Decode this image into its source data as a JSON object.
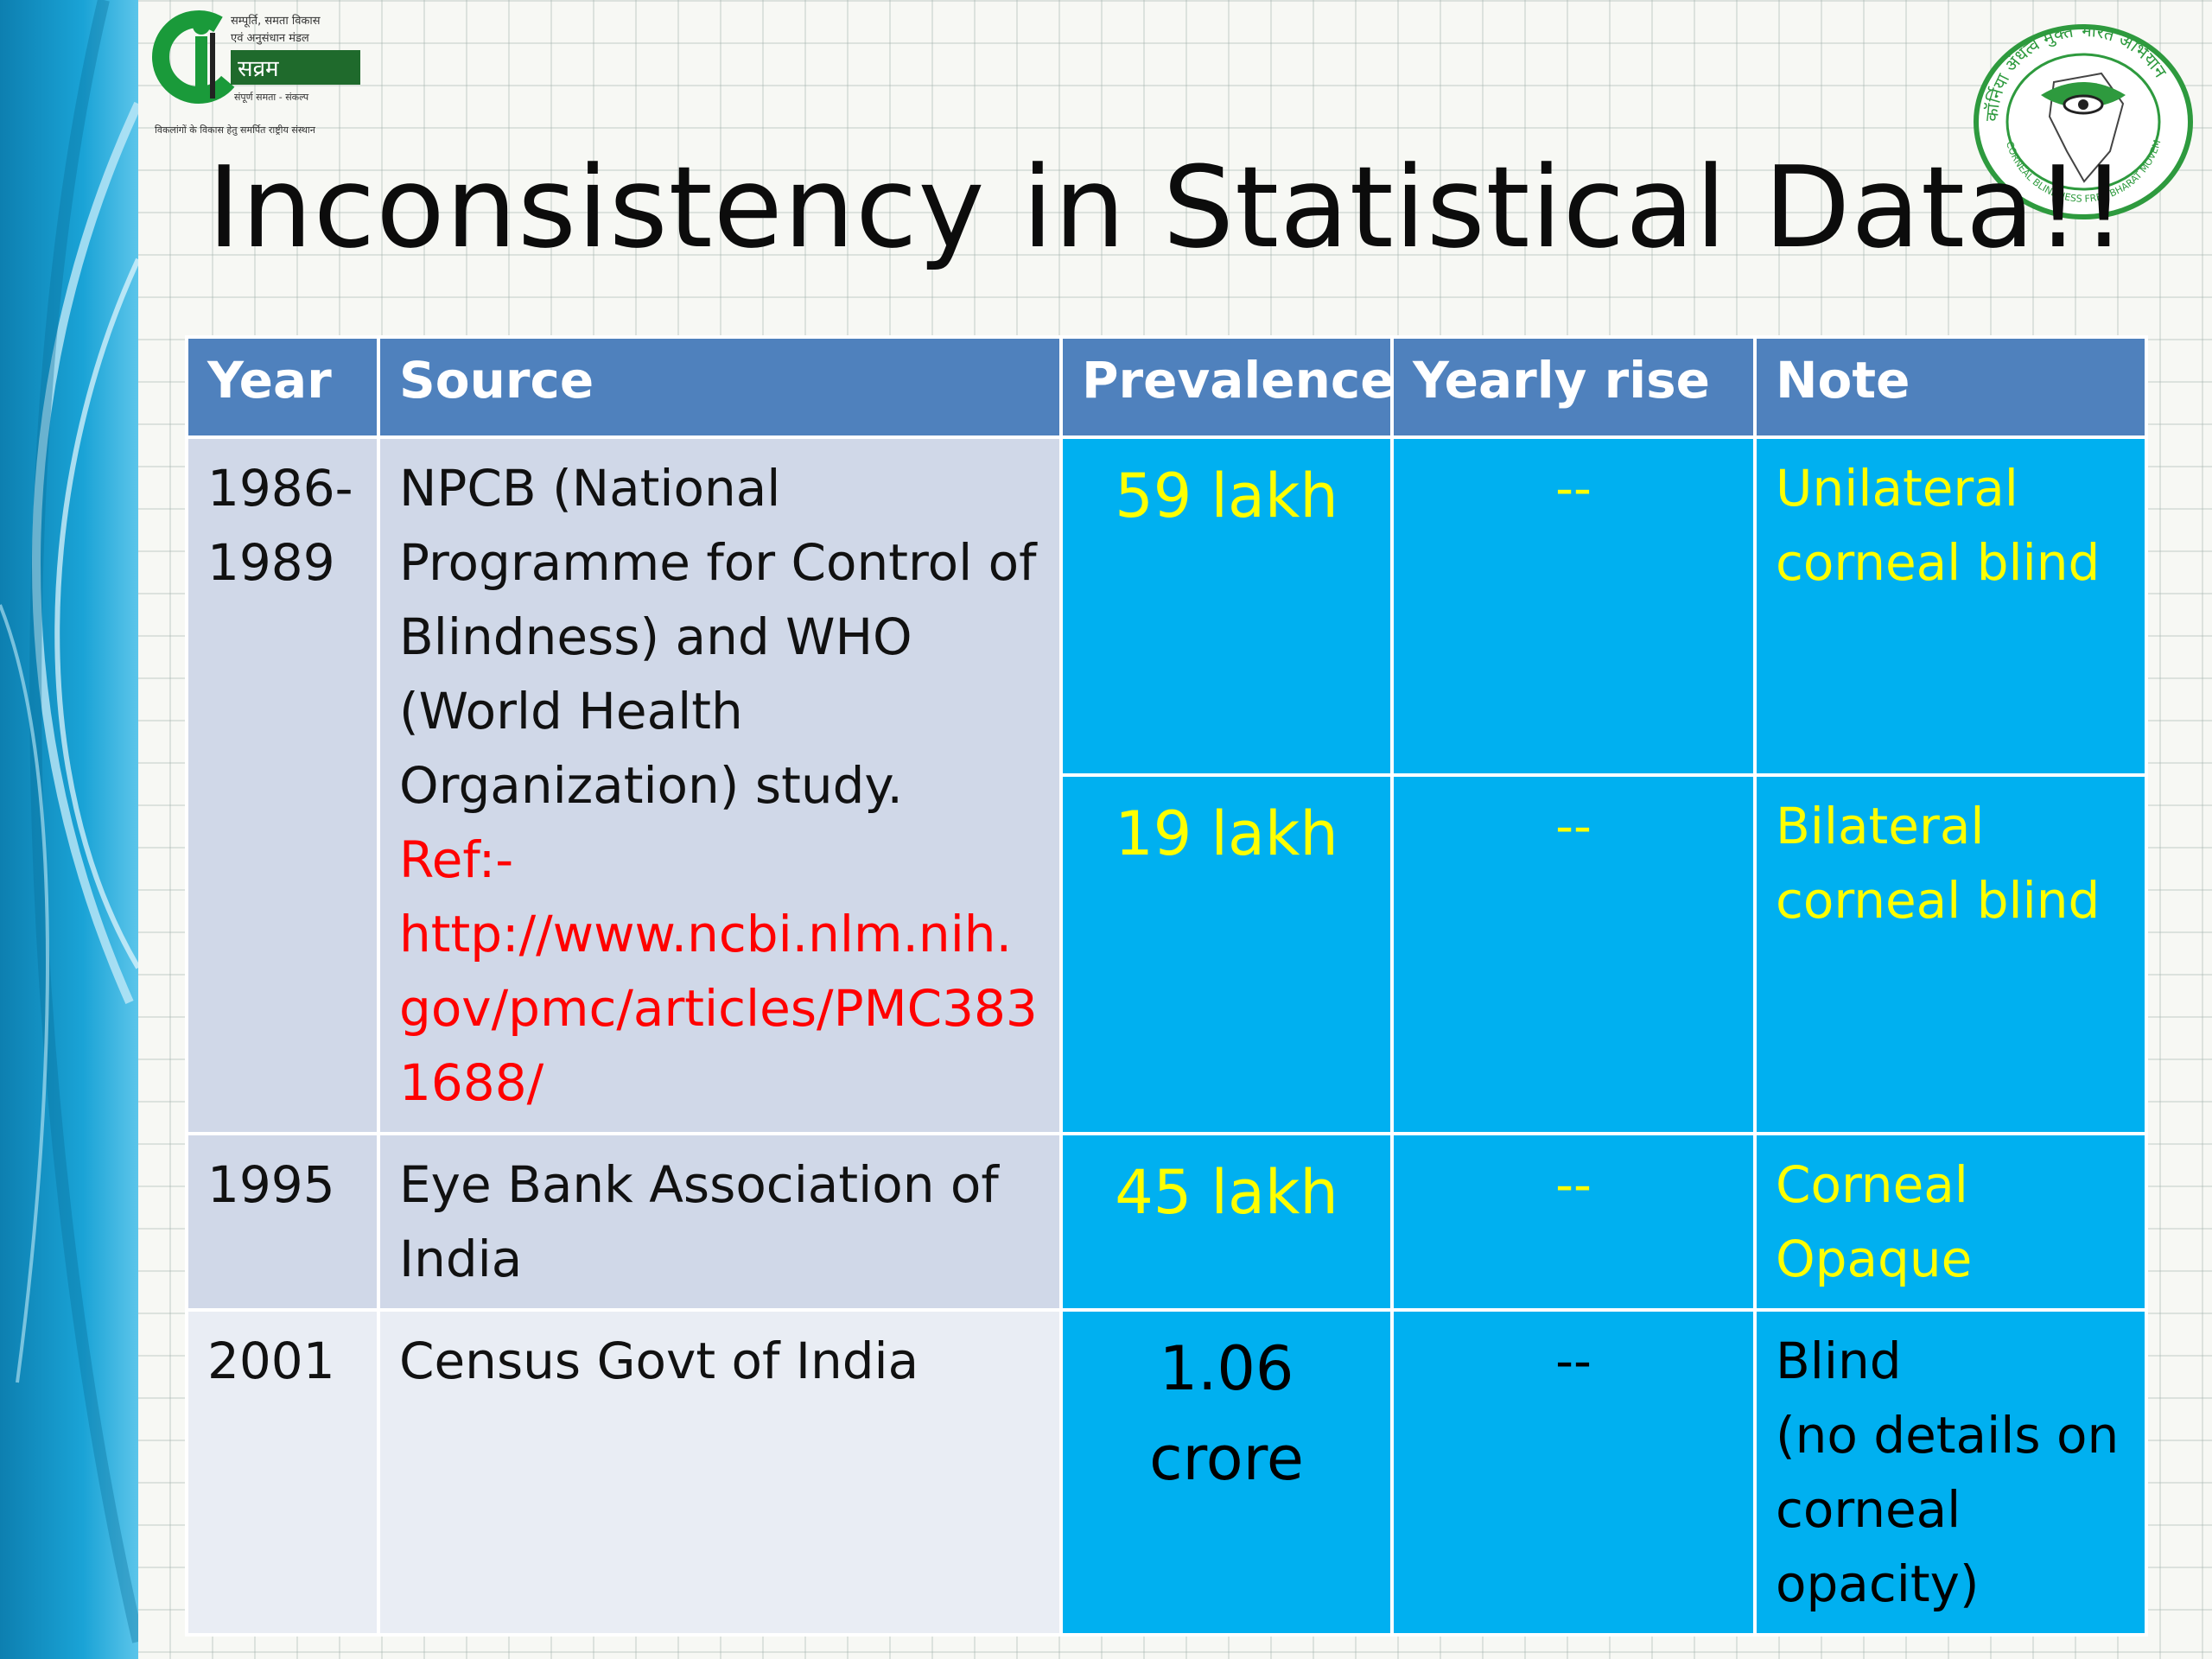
{
  "slide": {
    "title": "Inconsistency in Statistical Data!!",
    "logo_left": {
      "text_lines": [
        "सम्पूर्ति, समता विकास",
        "एवं अनुसंधान मंडल",
        "सव्रम",
        "संपूर्ण समता - संकल्प",
        "विकलांगों के विकास हेतु समर्पित राष्ट्रीय संस्थान"
      ]
    },
    "logo_right": {
      "ring_text": "कॉर्निया अंधत्व मुक्त भारत अभियान",
      "ring_text_en": "CORNEAL BLINDNESS FREE BHARAT MOVEMENT"
    }
  },
  "table": {
    "headers": [
      "Year",
      "Source",
      "Prevalence",
      "Yearly rise",
      "Note"
    ],
    "rows": [
      {
        "year": "1986-1989",
        "source": "NPCB (National Programme for Control of Blindness) and WHO (World Health Organization) study.",
        "ref_label": "Ref:-",
        "ref_url": "http://www.ncbi.nlm.nih.gov/pmc/articles/PMC3831688/",
        "sub": [
          {
            "prevalence": "59 lakh",
            "yearly_rise": "--",
            "note": "Unilateral corneal blind"
          },
          {
            "prevalence": "19 lakh",
            "yearly_rise": "--",
            "note": "Bilateral corneal blind"
          }
        ]
      },
      {
        "year": "1995",
        "source": "Eye Bank Association of India",
        "prevalence": "45 lakh",
        "yearly_rise": "--",
        "note": "Corneal Opaque"
      },
      {
        "year": "2001",
        "source": "Census Govt of India",
        "prevalence_line1": "1.06",
        "prevalence_line2": "crore",
        "yearly_rise": "--",
        "note_line1": "Blind",
        "note_line2": "(no details on corneal opacity)"
      }
    ]
  },
  "colors": {
    "header_bg": "#4f81bd",
    "row_band_a": "#d0d8e8",
    "row_band_b": "#e9edf4",
    "highlight_bg": "#00b0f0",
    "highlight_text": "#ffff00",
    "ref_text": "#ff0000"
  }
}
